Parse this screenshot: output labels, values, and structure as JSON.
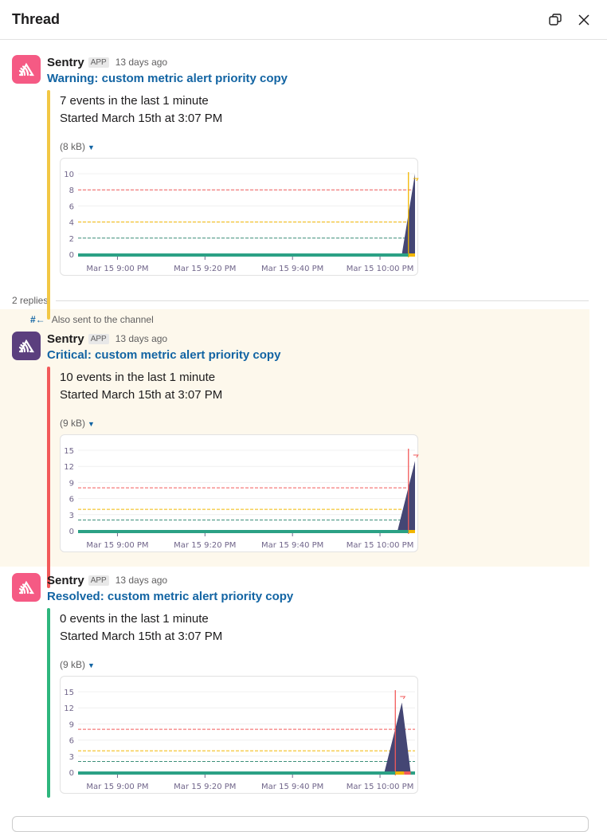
{
  "header": {
    "title": "Thread"
  },
  "replies_label": "2 replies",
  "also_sent": "Also sent to the channel",
  "messages": [
    {
      "sender": "Sentry",
      "badge": "APP",
      "time": "13 days ago",
      "title": "Warning: custom metric alert priority copy",
      "line1": "7 events in the last 1 minute",
      "line2": "Started March 15th at 3:07 PM",
      "size": "(8 kB)",
      "accent": "#f2c744",
      "avatar_color": "#f55a84"
    },
    {
      "sender": "Sentry",
      "badge": "APP",
      "time": "13 days ago",
      "title": "Critical: custom metric alert priority copy",
      "line1": "10 events in the last 1 minute",
      "line2": "Started March 15th at 3:07 PM",
      "size": "(9 kB)",
      "accent": "#f25a5a",
      "avatar_color": "#5b3f7e"
    },
    {
      "sender": "Sentry",
      "badge": "APP",
      "time": "13 days ago",
      "title": "Resolved: custom metric alert priority copy",
      "line1": "0 events in the last 1 minute",
      "line2": "Started March 15th at 3:07 PM",
      "size": "(9 kB)",
      "accent": "#2eb67d",
      "avatar_color": "#f55a84"
    }
  ],
  "chart_data": [
    {
      "type": "area",
      "xlim": [
        "20:51",
        "22:08"
      ],
      "ylim": [
        0,
        10
      ],
      "yticks": [
        "0",
        "2",
        "4",
        "6",
        "8",
        "10"
      ],
      "xticks": [
        {
          "t": "21:00",
          "label": "Mar 15 9:00 PM"
        },
        {
          "t": "21:20",
          "label": "Mar 15 9:20 PM"
        },
        {
          "t": "21:40",
          "label": "Mar 15 9:40 PM"
        },
        {
          "t": "22:00",
          "label": "Mar 15 10:00 PM"
        }
      ],
      "points": [
        [
          "20:51",
          0
        ],
        [
          "22:05",
          0
        ],
        [
          "22:08",
          10
        ]
      ],
      "thresholds": [
        {
          "value": 8,
          "color": "#f25a5a"
        },
        {
          "value": 4,
          "color": "#f2b600"
        },
        {
          "value": 2,
          "color": "#3d8f7a"
        }
      ],
      "marker": {
        "t": "22:06.5",
        "color": "#f2b600"
      },
      "status": [
        {
          "from": "20:51",
          "to": "22:06.5",
          "color": "#2ba185"
        },
        {
          "from": "22:06.5",
          "to": "22:08",
          "color": "#f2b600"
        }
      ],
      "series_color": "#444674"
    },
    {
      "type": "area",
      "xlim": [
        "20:51",
        "22:08"
      ],
      "ylim": [
        0,
        15
      ],
      "yticks": [
        "0",
        "3",
        "6",
        "9",
        "12",
        "15"
      ],
      "xticks": [
        {
          "t": "21:00",
          "label": "Mar 15 9:00 PM"
        },
        {
          "t": "21:20",
          "label": "Mar 15 9:20 PM"
        },
        {
          "t": "21:40",
          "label": "Mar 15 9:40 PM"
        },
        {
          "t": "22:00",
          "label": "Mar 15 10:00 PM"
        }
      ],
      "points": [
        [
          "20:51",
          0
        ],
        [
          "22:04",
          0
        ],
        [
          "22:08",
          13
        ]
      ],
      "thresholds": [
        {
          "value": 8,
          "color": "#f25a5a"
        },
        {
          "value": 4,
          "color": "#f2b600"
        },
        {
          "value": 2,
          "color": "#3d8f7a"
        }
      ],
      "marker": {
        "t": "22:06.5",
        "color": "#f25a5a"
      },
      "status": [
        {
          "from": "20:51",
          "to": "22:06.5",
          "color": "#2ba185"
        },
        {
          "from": "22:06.5",
          "to": "22:08",
          "color": "#f2b600"
        }
      ],
      "series_color": "#444674"
    },
    {
      "type": "area",
      "xlim": [
        "20:51",
        "22:08"
      ],
      "ylim": [
        0,
        15
      ],
      "yticks": [
        "0",
        "3",
        "6",
        "9",
        "12",
        "15"
      ],
      "xticks": [
        {
          "t": "21:00",
          "label": "Mar 15 9:00 PM"
        },
        {
          "t": "21:20",
          "label": "Mar 15 9:20 PM"
        },
        {
          "t": "21:40",
          "label": "Mar 15 9:40 PM"
        },
        {
          "t": "22:00",
          "label": "Mar 15 10:00 PM"
        }
      ],
      "points": [
        [
          "20:51",
          0
        ],
        [
          "22:01",
          0
        ],
        [
          "22:05",
          13
        ],
        [
          "22:07",
          0
        ],
        [
          "22:08",
          0
        ]
      ],
      "thresholds": [
        {
          "value": 8,
          "color": "#f25a5a"
        },
        {
          "value": 4,
          "color": "#f2b600"
        },
        {
          "value": 2,
          "color": "#3d8f7a"
        }
      ],
      "marker": {
        "t": "22:03.5",
        "color": "#f25a5a"
      },
      "status": [
        {
          "from": "20:51",
          "to": "22:03.5",
          "color": "#2ba185"
        },
        {
          "from": "22:03.5",
          "to": "22:05.5",
          "color": "#f2b600"
        },
        {
          "from": "22:05.5",
          "to": "22:07",
          "color": "#f25a5a"
        },
        {
          "from": "22:07",
          "to": "22:08",
          "color": "#2ba185"
        }
      ],
      "series_color": "#444674"
    }
  ]
}
